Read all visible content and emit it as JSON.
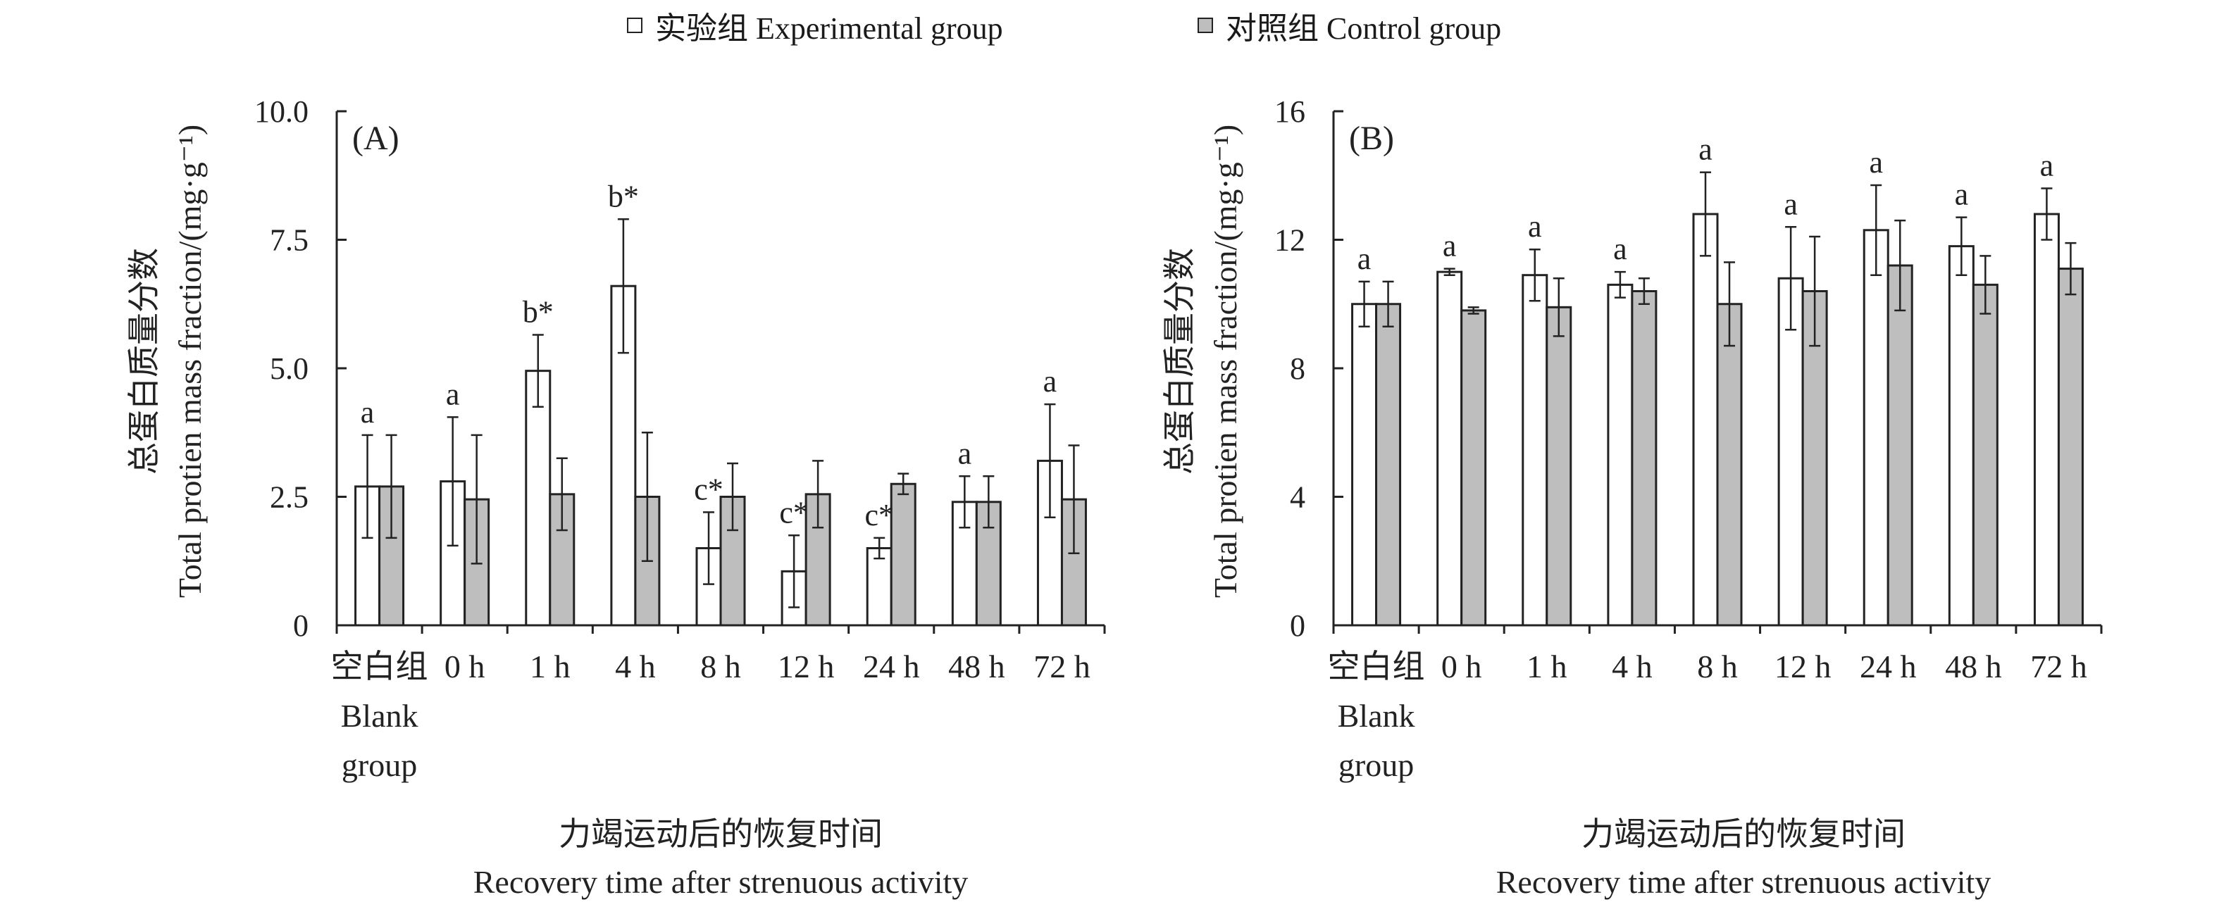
{
  "legend": {
    "experimental": "实验组 Experimental group",
    "control": "对照组 Control group"
  },
  "colors": {
    "experimental": "#ffffff",
    "control": "#bebebe",
    "ink": "#222222"
  },
  "chart_data": [
    {
      "type": "bar",
      "panel_label": "(A)",
      "categories": [
        "空白组",
        "0 h",
        "1 h",
        "4 h",
        "8 h",
        "12 h",
        "24 h",
        "48 h",
        "72 h"
      ],
      "category_sublabels": [
        "Blank",
        "group"
      ],
      "ylim": [
        0,
        10
      ],
      "yticks": [
        "0",
        "2.5",
        "5.0",
        "7.5",
        "10.0"
      ],
      "ylabel_cn": "总蛋白质量分数",
      "ylabel_en": "Total protien mass fraction/(mg·g⁻¹)",
      "xlabel_cn": "力竭运动后的恢复时间",
      "xlabel_en": "Recovery time after strenuous activity",
      "series": [
        {
          "name": "实验组 Experimental group",
          "values": [
            2.7,
            2.8,
            4.95,
            6.6,
            1.5,
            1.05,
            1.5,
            2.4,
            3.2
          ],
          "errors": [
            1.0,
            1.25,
            0.7,
            1.3,
            0.7,
            0.7,
            0.2,
            0.5,
            1.1
          ]
        },
        {
          "name": "对照组 Control group",
          "values": [
            2.7,
            2.45,
            2.55,
            2.5,
            2.5,
            2.55,
            2.75,
            2.4,
            2.45
          ],
          "errors": [
            1.0,
            1.25,
            0.7,
            1.25,
            0.65,
            0.65,
            0.2,
            0.5,
            1.05
          ]
        }
      ],
      "annotations": [
        "a",
        "a",
        "b*",
        "b*",
        "c*",
        "c*",
        "c*",
        "a",
        "a"
      ]
    },
    {
      "type": "bar",
      "panel_label": "(B)",
      "categories": [
        "空白组",
        "0 h",
        "1 h",
        "4 h",
        "8 h",
        "12 h",
        "24 h",
        "48 h",
        "72 h"
      ],
      "category_sublabels": [
        "Blank",
        "group"
      ],
      "ylim": [
        0,
        16
      ],
      "yticks": [
        "0",
        "4",
        "8",
        "12",
        "16"
      ],
      "ylabel_cn": "总蛋白质量分数",
      "ylabel_en": "Total protien mass fraction/(mg·g⁻¹)",
      "xlabel_cn": "力竭运动后的恢复时间",
      "xlabel_en": "Recovery time after strenuous activity",
      "series": [
        {
          "name": "实验组 Experimental group",
          "values": [
            10.0,
            11.0,
            10.9,
            10.6,
            12.8,
            10.8,
            12.3,
            11.8,
            12.8
          ],
          "errors": [
            0.7,
            0.1,
            0.8,
            0.4,
            1.3,
            1.6,
            1.4,
            0.9,
            0.8
          ]
        },
        {
          "name": "对照组 Control group",
          "values": [
            10.0,
            9.8,
            9.9,
            10.4,
            10.0,
            10.4,
            11.2,
            10.6,
            11.1
          ],
          "errors": [
            0.7,
            0.1,
            0.9,
            0.4,
            1.3,
            1.7,
            1.4,
            0.9,
            0.8
          ]
        }
      ],
      "annotations": [
        "a",
        "a",
        "a",
        "a",
        "a",
        "a",
        "a",
        "a",
        "a"
      ]
    }
  ]
}
